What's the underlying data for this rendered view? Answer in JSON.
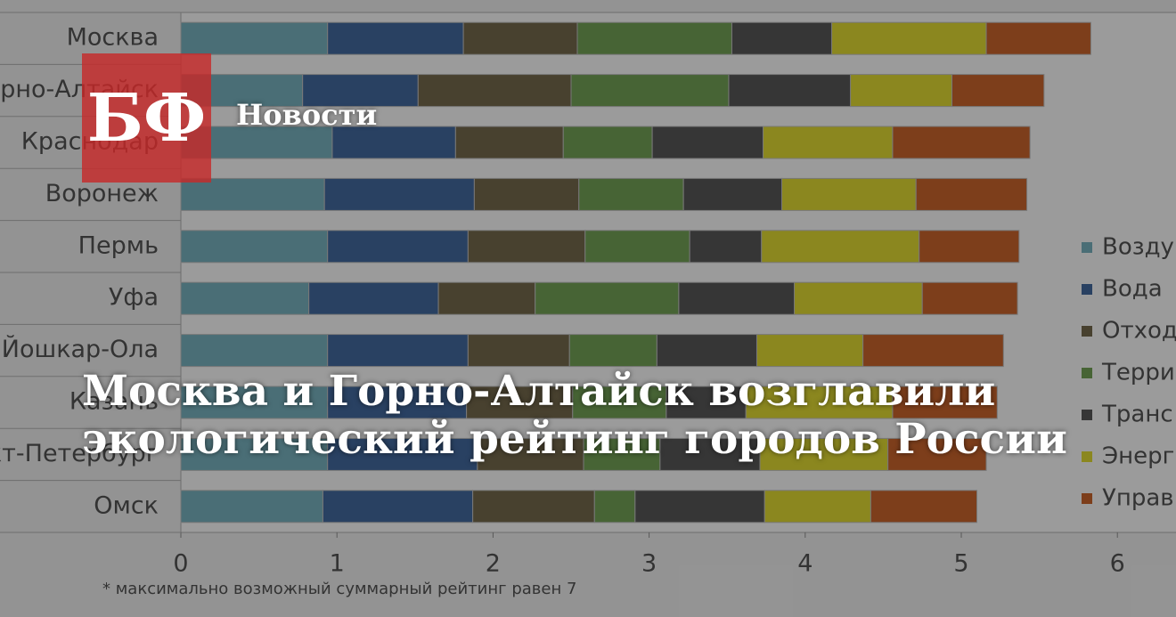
{
  "logo": "БФ",
  "section": "Новости",
  "headline": [
    "Москва и Горно-Алтайск возглавили",
    "экологический рейтинг городов России"
  ],
  "chart_data": {
    "type": "bar",
    "orientation": "horizontal",
    "stacked": true,
    "categories": [
      "Москва",
      "Горно-Алтайск",
      "Краснодар",
      "Воронеж",
      "Пермь",
      "Уфа",
      "Йошкар-Ола",
      "Казань",
      "Санкт-Петербург",
      "Омск"
    ],
    "series": [
      {
        "name": "Возду",
        "color": "#5f9aa6",
        "values": [
          0.94,
          0.78,
          0.97,
          0.92,
          0.94,
          0.82,
          0.94,
          0.94,
          0.94,
          0.91
        ]
      },
      {
        "name": "Вода",
        "color": "#2b5286",
        "values": [
          0.87,
          0.74,
          0.79,
          0.96,
          0.9,
          0.83,
          0.9,
          0.89,
          0.96,
          0.96
        ]
      },
      {
        "name": "Отход",
        "color": "#5d5234",
        "values": [
          0.73,
          0.98,
          0.69,
          0.67,
          0.75,
          0.62,
          0.65,
          0.68,
          0.68,
          0.78
        ]
      },
      {
        "name": "Терри",
        "color": "#5b8a3e",
        "values": [
          0.99,
          1.01,
          0.57,
          0.67,
          0.67,
          0.92,
          0.56,
          0.6,
          0.49,
          0.26
        ]
      },
      {
        "name": "Транс",
        "color": "#404040",
        "values": [
          0.64,
          0.78,
          0.71,
          0.63,
          0.46,
          0.74,
          0.64,
          0.51,
          0.64,
          0.83
        ]
      },
      {
        "name": "Энерг",
        "color": "#c9c21a",
        "values": [
          0.99,
          0.65,
          0.83,
          0.86,
          1.01,
          0.82,
          0.68,
          0.94,
          0.82,
          0.68
        ]
      },
      {
        "name": "Управ",
        "color": "#b24d14",
        "values": [
          0.67,
          0.59,
          0.88,
          0.71,
          0.64,
          0.61,
          0.9,
          0.67,
          0.63,
          0.68
        ]
      }
    ],
    "xlim": [
      0,
      6.6
    ],
    "xticks": [
      0,
      1,
      2,
      3,
      4,
      5,
      6
    ],
    "legend": "right",
    "note": "* максимально возможный суммарный рейтинг равен 7"
  }
}
